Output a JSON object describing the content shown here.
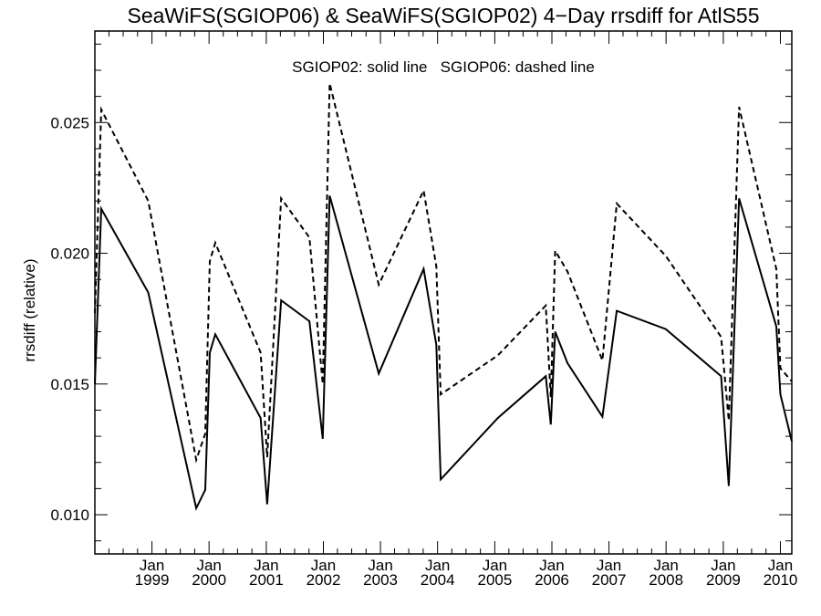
{
  "chart_data": {
    "type": "line",
    "title": "SeaWiFS(SGIOP06) & SeaWiFS(SGIOP02) 4−Day rrsdiff for AtlS55",
    "annotation": "SGIOP02: solid line   SGIOP06: dashed line",
    "xlabel": "",
    "ylabel": "rrsdiff (relative)",
    "xlim": [
      "1998-01-01",
      "2010-03-15"
    ],
    "ylim": [
      0.0085,
      0.0285
    ],
    "yticks": [
      {
        "value": 0.01,
        "label": "0.010"
      },
      {
        "value": 0.015,
        "label": "0.015"
      },
      {
        "value": 0.02,
        "label": "0.020"
      },
      {
        "value": 0.025,
        "label": "0.025"
      }
    ],
    "xticks": [
      {
        "value": "1999-01-01",
        "label1": "Jan",
        "label2": "1999"
      },
      {
        "value": "2000-01-01",
        "label1": "Jan",
        "label2": "2000"
      },
      {
        "value": "2001-01-01",
        "label1": "Jan",
        "label2": "2001"
      },
      {
        "value": "2002-01-01",
        "label1": "Jan",
        "label2": "2002"
      },
      {
        "value": "2003-01-01",
        "label1": "Jan",
        "label2": "2003"
      },
      {
        "value": "2004-01-01",
        "label1": "Jan",
        "label2": "2004"
      },
      {
        "value": "2005-01-01",
        "label1": "Jan",
        "label2": "2005"
      },
      {
        "value": "2006-01-01",
        "label1": "Jan",
        "label2": "2006"
      },
      {
        "value": "2007-01-01",
        "label1": "Jan",
        "label2": "2007"
      },
      {
        "value": "2008-01-01",
        "label1": "Jan",
        "label2": "2008"
      },
      {
        "value": "2009-01-01",
        "label1": "Jan",
        "label2": "2009"
      },
      {
        "value": "2010-01-01",
        "label1": "Jan",
        "label2": "2010"
      }
    ],
    "series": [
      {
        "name": "SGIOP02",
        "style": "solid",
        "color": "#000000",
        "points": [
          {
            "x": "1998-01-01",
            "y": 0.015
          },
          {
            "x": "1998-02-11",
            "y": 0.0217
          },
          {
            "x": "1998-12-08",
            "y": 0.0185
          },
          {
            "x": "1999-10-11",
            "y": 0.01025
          },
          {
            "x": "1999-12-08",
            "y": 0.01095
          },
          {
            "x": "2000-01-06",
            "y": 0.0162
          },
          {
            "x": "2000-02-10",
            "y": 0.0169
          },
          {
            "x": "2000-11-26",
            "y": 0.0137
          },
          {
            "x": "2001-01-07",
            "y": 0.0104
          },
          {
            "x": "2001-04-06",
            "y": 0.0182
          },
          {
            "x": "2001-10-04",
            "y": 0.0174
          },
          {
            "x": "2001-12-28",
            "y": 0.0129
          },
          {
            "x": "2002-02-10",
            "y": 0.0222
          },
          {
            "x": "2002-12-21",
            "y": 0.0154
          },
          {
            "x": "2003-10-04",
            "y": 0.0194
          },
          {
            "x": "2003-12-24",
            "y": 0.0165
          },
          {
            "x": "2004-01-21",
            "y": 0.01135
          },
          {
            "x": "2005-01-21",
            "y": 0.0137
          },
          {
            "x": "2005-11-23",
            "y": 0.0153
          },
          {
            "x": "2005-12-25",
            "y": 0.01345
          },
          {
            "x": "2006-01-22",
            "y": 0.017
          },
          {
            "x": "2006-04-11",
            "y": 0.0158
          },
          {
            "x": "2006-11-20",
            "y": 0.01375
          },
          {
            "x": "2007-02-20",
            "y": 0.0178
          },
          {
            "x": "2007-12-30",
            "y": 0.0171
          },
          {
            "x": "2008-12-18",
            "y": 0.0153
          },
          {
            "x": "2009-02-05",
            "y": 0.0111
          },
          {
            "x": "2009-04-12",
            "y": 0.0221
          },
          {
            "x": "2009-12-06",
            "y": 0.0172
          },
          {
            "x": "2010-01-01",
            "y": 0.0146
          },
          {
            "x": "2010-03-15",
            "y": 0.0128
          }
        ]
      },
      {
        "name": "SGIOP06",
        "style": "dashed",
        "color": "#000000",
        "points": [
          {
            "x": "1998-01-01",
            "y": 0.0177
          },
          {
            "x": "1998-02-11",
            "y": 0.0255
          },
          {
            "x": "1998-12-08",
            "y": 0.022
          },
          {
            "x": "1999-10-11",
            "y": 0.0121
          },
          {
            "x": "1999-12-08",
            "y": 0.0131
          },
          {
            "x": "2000-01-06",
            "y": 0.0197
          },
          {
            "x": "2000-02-10",
            "y": 0.0204
          },
          {
            "x": "2000-11-26",
            "y": 0.0162
          },
          {
            "x": "2001-01-07",
            "y": 0.0122
          },
          {
            "x": "2001-04-06",
            "y": 0.0221
          },
          {
            "x": "2001-10-04",
            "y": 0.0206
          },
          {
            "x": "2001-12-28",
            "y": 0.015
          },
          {
            "x": "2002-02-10",
            "y": 0.0265
          },
          {
            "x": "2002-12-21",
            "y": 0.0188
          },
          {
            "x": "2003-10-04",
            "y": 0.0224
          },
          {
            "x": "2003-12-24",
            "y": 0.0195
          },
          {
            "x": "2004-01-21",
            "y": 0.0146
          },
          {
            "x": "2005-01-21",
            "y": 0.0161
          },
          {
            "x": "2005-11-23",
            "y": 0.018
          },
          {
            "x": "2005-12-25",
            "y": 0.0145
          },
          {
            "x": "2006-01-22",
            "y": 0.0201
          },
          {
            "x": "2006-04-11",
            "y": 0.0193
          },
          {
            "x": "2006-11-20",
            "y": 0.0159
          },
          {
            "x": "2007-02-20",
            "y": 0.0219
          },
          {
            "x": "2007-12-30",
            "y": 0.0199
          },
          {
            "x": "2008-12-18",
            "y": 0.0168
          },
          {
            "x": "2009-02-05",
            "y": 0.0136
          },
          {
            "x": "2009-04-12",
            "y": 0.0256
          },
          {
            "x": "2009-12-06",
            "y": 0.0194
          },
          {
            "x": "2010-01-01",
            "y": 0.0156
          },
          {
            "x": "2010-03-15",
            "y": 0.0151
          }
        ]
      }
    ]
  }
}
